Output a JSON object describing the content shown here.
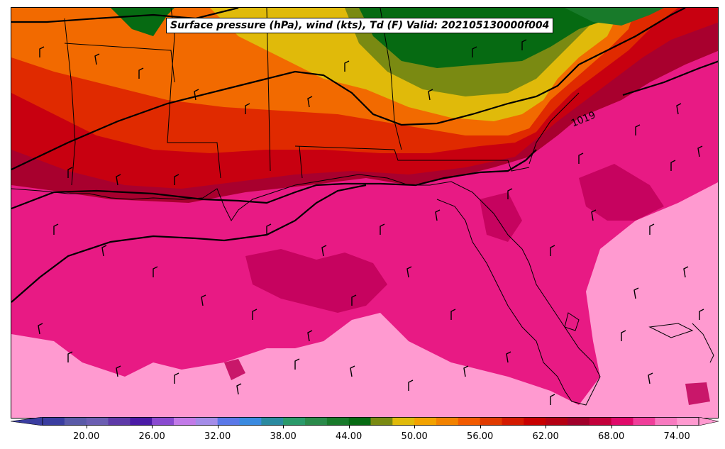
{
  "title": "Surface pressure (hPa), wind (kts), Td (F) Valid: 202105130000f004",
  "isobar_label": "1019",
  "colorbar": {
    "tick_labels": [
      "20.00",
      "26.00",
      "32.00",
      "38.00",
      "44.00",
      "50.00",
      "56.00",
      "62.00",
      "68.00",
      "74.00"
    ],
    "colors": [
      "#3a3da0",
      "#5a5aa8",
      "#6b5eb2",
      "#5e3aa8",
      "#4a1aa6",
      "#8a4ad0",
      "#c27ae8",
      "#a48ce8",
      "#5a78e8",
      "#3a8ae0",
      "#2a8aa0",
      "#2a9a6a",
      "#2a8a4a",
      "#187a2a",
      "#066a12",
      "#7a8a12",
      "#e0ba0a",
      "#f2a200",
      "#f28200",
      "#f25a00",
      "#e03a00",
      "#d41a00",
      "#c80000",
      "#b40012",
      "#a0002a",
      "#c2003a",
      "#e00a6a",
      "#f03e9a",
      "#f87ac0",
      "#ff9ad0"
    ]
  },
  "legend_colors": {
    "dewpoint_74_plus": "#ff9ad0",
    "dewpoint_68": "#e81a84",
    "dewpoint_62": "#c80010",
    "dewpoint_56": "#f26a00",
    "dewpoint_50": "#e0ba0a",
    "dewpoint_44": "#066a12"
  }
}
